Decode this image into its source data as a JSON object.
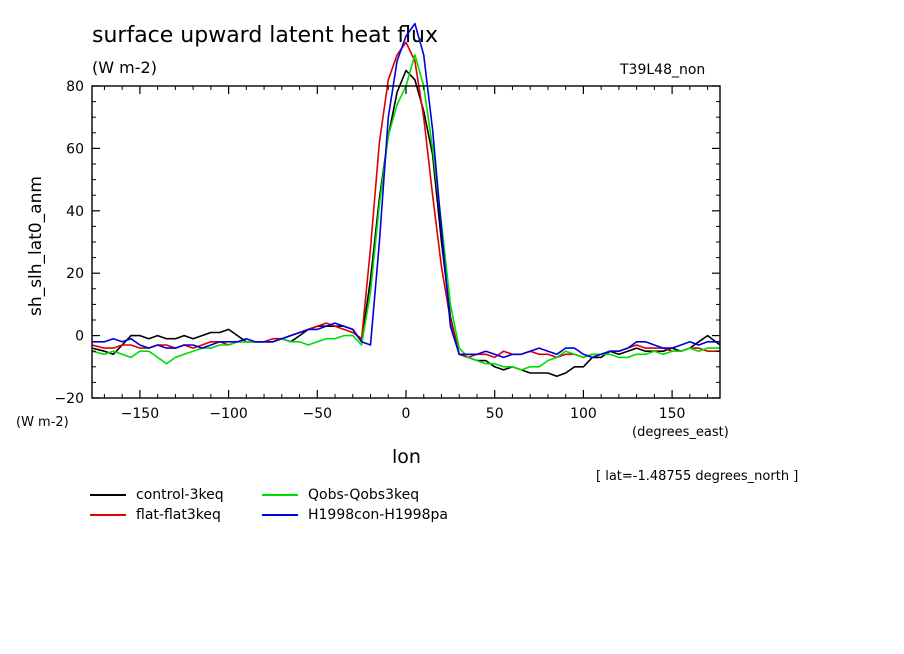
{
  "header": {
    "title": "surface upward latent heat flux",
    "units": "(W m-2)",
    "run": "T39L48_non"
  },
  "axes": {
    "ylabel": "sh_slh_lat0_anm",
    "y_units": "(W m-2)",
    "xlabel": "lon",
    "x_units": "(degrees_east)"
  },
  "note": "[ lat=-1.48755 degrees_north ]",
  "chart_data": {
    "type": "line",
    "title": "surface upward latent heat flux",
    "xlabel": "lon",
    "ylabel": "sh_slh_lat0_anm",
    "xlim": [
      -177,
      177
    ],
    "ylim": [
      -20,
      80
    ],
    "xticks": [
      -150,
      -100,
      -50,
      0,
      50,
      100,
      150
    ],
    "yticks": [
      -20,
      0,
      20,
      40,
      60,
      80
    ],
    "xtick_labels": [
      "−150",
      "−100",
      "−50",
      "0",
      "50",
      "100",
      "150"
    ],
    "ytick_labels": [
      "−20",
      "0",
      "20",
      "40",
      "60",
      "80"
    ],
    "grid": false,
    "legend_position": "bottom-left",
    "series": [
      {
        "name": "control-3keq",
        "color": "#000000",
        "x": [
          -177,
          -170,
          -165,
          -160,
          -155,
          -150,
          -145,
          -140,
          -135,
          -130,
          -125,
          -120,
          -115,
          -110,
          -105,
          -100,
          -95,
          -90,
          -85,
          -80,
          -75,
          -70,
          -65,
          -60,
          -55,
          -50,
          -45,
          -40,
          -35,
          -30,
          -25,
          -20,
          -15,
          -10,
          -5,
          0,
          5,
          10,
          15,
          20,
          25,
          30,
          35,
          40,
          45,
          50,
          55,
          60,
          65,
          70,
          75,
          80,
          85,
          90,
          95,
          100,
          105,
          110,
          115,
          120,
          125,
          130,
          135,
          140,
          145,
          150,
          155,
          160,
          165,
          170,
          177
        ],
        "y": [
          -4,
          -5,
          -6,
          -3,
          0,
          0,
          -1,
          0,
          -1,
          -1,
          0,
          -1,
          0,
          1,
          1,
          2,
          0,
          -2,
          -2,
          -2,
          -2,
          -1,
          -2,
          0,
          2,
          3,
          3,
          3,
          3,
          2,
          -2,
          18,
          44,
          64,
          78,
          85,
          82,
          72,
          58,
          30,
          6,
          -6,
          -7,
          -8,
          -8,
          -10,
          -11,
          -10,
          -11,
          -12,
          -12,
          -12,
          -13,
          -12,
          -10,
          -10,
          -7,
          -7,
          -5,
          -6,
          -5,
          -4,
          -5,
          -5,
          -5,
          -4,
          -5,
          -4,
          -2,
          0,
          -3
        ]
      },
      {
        "name": "flat-flat3keq",
        "color": "#dd0000",
        "x": [
          -177,
          -170,
          -165,
          -160,
          -155,
          -150,
          -145,
          -140,
          -135,
          -130,
          -125,
          -120,
          -115,
          -110,
          -105,
          -100,
          -95,
          -90,
          -85,
          -80,
          -75,
          -70,
          -65,
          -60,
          -55,
          -50,
          -45,
          -40,
          -35,
          -30,
          -25,
          -20,
          -15,
          -10,
          -5,
          0,
          5,
          10,
          15,
          20,
          25,
          30,
          35,
          40,
          45,
          50,
          55,
          60,
          65,
          70,
          75,
          80,
          85,
          90,
          95,
          100,
          105,
          110,
          115,
          120,
          125,
          130,
          135,
          140,
          145,
          150,
          155,
          160,
          165,
          170,
          177
        ],
        "y": [
          -3,
          -4,
          -4,
          -3,
          -3,
          -4,
          -4,
          -3,
          -3,
          -4,
          -3,
          -4,
          -3,
          -2,
          -2,
          -3,
          -2,
          -2,
          -2,
          -2,
          -1,
          -1,
          0,
          1,
          2,
          3,
          4,
          3,
          2,
          1,
          -1,
          28,
          62,
          82,
          90,
          94,
          88,
          70,
          45,
          22,
          5,
          -6,
          -7,
          -6,
          -6,
          -7,
          -5,
          -6,
          -6,
          -5,
          -6,
          -6,
          -7,
          -6,
          -6,
          -7,
          -6,
          -6,
          -5,
          -5,
          -4,
          -3,
          -4,
          -4,
          -4,
          -5,
          -5,
          -4,
          -4,
          -5,
          -5
        ]
      },
      {
        "name": "Qobs-Qobs3keq",
        "color": "#00dd00",
        "x": [
          -177,
          -170,
          -165,
          -160,
          -155,
          -150,
          -145,
          -140,
          -135,
          -130,
          -125,
          -120,
          -115,
          -110,
          -105,
          -100,
          -95,
          -90,
          -85,
          -80,
          -75,
          -70,
          -65,
          -60,
          -55,
          -50,
          -45,
          -40,
          -35,
          -30,
          -25,
          -20,
          -15,
          -10,
          -5,
          0,
          5,
          10,
          15,
          20,
          25,
          30,
          35,
          40,
          45,
          50,
          55,
          60,
          65,
          70,
          75,
          80,
          85,
          90,
          95,
          100,
          105,
          110,
          115,
          120,
          125,
          130,
          135,
          140,
          145,
          150,
          155,
          160,
          165,
          170,
          177
        ],
        "y": [
          -5,
          -6,
          -5,
          -6,
          -7,
          -5,
          -5,
          -7,
          -9,
          -7,
          -6,
          -5,
          -4,
          -4,
          -3,
          -3,
          -2,
          -2,
          -2,
          -2,
          -2,
          -1,
          -2,
          -2,
          -3,
          -2,
          -1,
          -1,
          0,
          0,
          -3,
          14,
          42,
          64,
          74,
          80,
          90,
          80,
          60,
          36,
          10,
          -4,
          -7,
          -8,
          -9,
          -9,
          -10,
          -10,
          -11,
          -10,
          -10,
          -8,
          -7,
          -5,
          -6,
          -7,
          -6,
          -6,
          -6,
          -7,
          -7,
          -6,
          -6,
          -5,
          -6,
          -5,
          -5,
          -4,
          -5,
          -4,
          -4
        ]
      },
      {
        "name": "H1998con-H1998pa",
        "color": "#0000dd",
        "x": [
          -177,
          -170,
          -165,
          -160,
          -155,
          -150,
          -145,
          -140,
          -135,
          -130,
          -125,
          -120,
          -115,
          -110,
          -105,
          -100,
          -95,
          -90,
          -85,
          -80,
          -75,
          -70,
          -65,
          -60,
          -55,
          -50,
          -45,
          -40,
          -35,
          -30,
          -25,
          -20,
          -15,
          -10,
          -5,
          0,
          5,
          10,
          15,
          20,
          25,
          30,
          35,
          40,
          45,
          50,
          55,
          60,
          65,
          70,
          75,
          80,
          85,
          90,
          95,
          100,
          105,
          110,
          115,
          120,
          125,
          130,
          135,
          140,
          145,
          150,
          155,
          160,
          165,
          170,
          177
        ],
        "y": [
          -2,
          -2,
          -1,
          -2,
          -1,
          -3,
          -4,
          -3,
          -4,
          -4,
          -3,
          -3,
          -4,
          -3,
          -2,
          -2,
          -2,
          -1,
          -2,
          -2,
          -2,
          -1,
          0,
          1,
          2,
          2,
          3,
          4,
          3,
          2,
          -2,
          -3,
          30,
          70,
          88,
          96,
          100,
          90,
          66,
          34,
          3,
          -6,
          -6,
          -6,
          -5,
          -6,
          -7,
          -6,
          -6,
          -5,
          -4,
          -5,
          -6,
          -4,
          -4,
          -6,
          -7,
          -6,
          -5,
          -5,
          -4,
          -2,
          -2,
          -3,
          -4,
          -4,
          -3,
          -2,
          -3,
          -2,
          -2
        ]
      }
    ]
  }
}
